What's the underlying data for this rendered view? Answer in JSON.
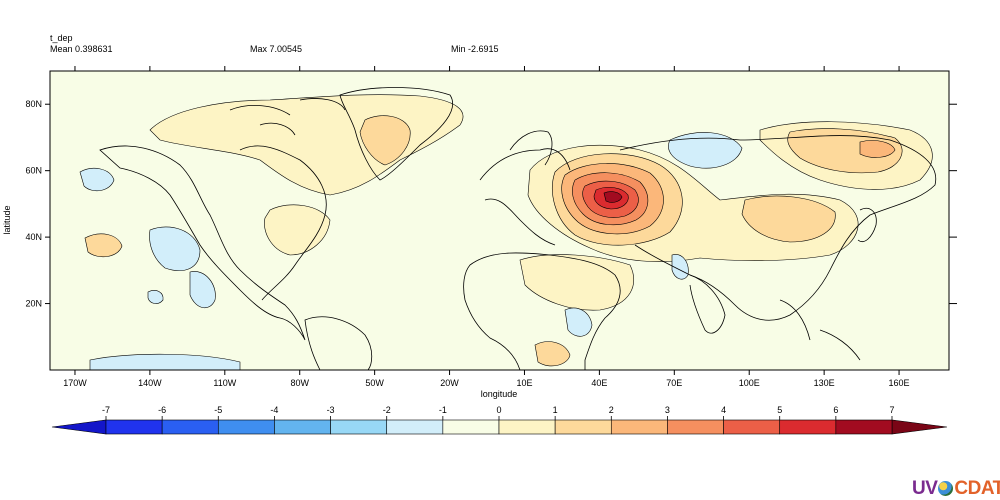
{
  "header": {
    "variable": "t_dep",
    "mean_label": "Mean 0.398631",
    "max_label": "Max 7.00545",
    "min_label": "Min -2.6915"
  },
  "map": {
    "x_ticks": [
      {
        "lon": -170,
        "label": "170W"
      },
      {
        "lon": -140,
        "label": "140W"
      },
      {
        "lon": -110,
        "label": "110W"
      },
      {
        "lon": -80,
        "label": "80W"
      },
      {
        "lon": -50,
        "label": "50W"
      },
      {
        "lon": -20,
        "label": "20W"
      },
      {
        "lon": 10,
        "label": "10E"
      },
      {
        "lon": 40,
        "label": "40E"
      },
      {
        "lon": 70,
        "label": "70E"
      },
      {
        "lon": 100,
        "label": "100E"
      },
      {
        "lon": 130,
        "label": "130E"
      },
      {
        "lon": 160,
        "label": "160E"
      }
    ],
    "y_ticks": [
      {
        "lat": 20,
        "label": "20N"
      },
      {
        "lat": 40,
        "label": "40N"
      },
      {
        "lat": 60,
        "label": "60N"
      },
      {
        "lat": 80,
        "label": "80N"
      }
    ],
    "xlabel": "longitude",
    "ylabel": "latitude",
    "lon_range": [
      -180,
      180
    ],
    "lat_range": [
      0,
      90
    ],
    "background_color": "#f8fde6",
    "coastline_color": "#000000"
  },
  "colorbar": {
    "labels": [
      "-7",
      "-6",
      "-5",
      "-4",
      "-3",
      "-2",
      "-1",
      "0",
      "1",
      "2",
      "3",
      "4",
      "5",
      "6",
      "7"
    ],
    "colors": [
      "#2033ee",
      "#2a5ff2",
      "#3f8ef0",
      "#63b4ef",
      "#98d8f6",
      "#d2eefa",
      "#f8fde6",
      "#fdf4c5",
      "#fdd99b",
      "#fbb77a",
      "#f58f5f",
      "#ec5f47",
      "#db2b2f",
      "#a20b20"
    ],
    "under_color": "#1316c9",
    "over_color": "#7a0516"
  },
  "logo": {
    "left": "UV",
    "right": "CDAT"
  }
}
